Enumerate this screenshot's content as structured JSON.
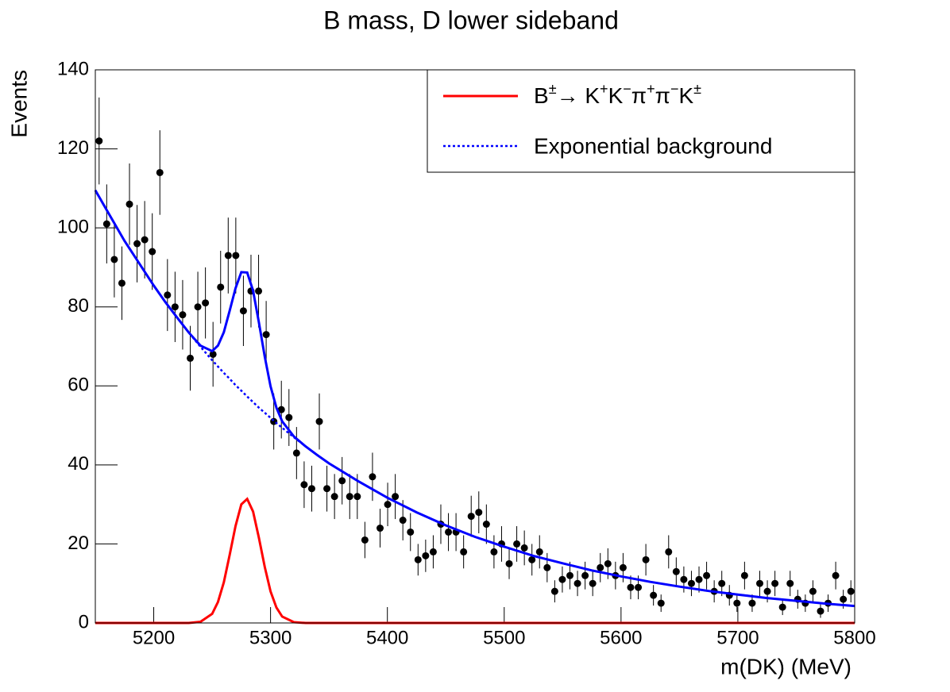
{
  "chart_data": {
    "type": "histogram",
    "title": "B mass, D lower sideband",
    "xlabel": "m(DK) (MeV)",
    "ylabel": "Events",
    "xlim": [
      5150,
      5800
    ],
    "ylim": [
      0,
      140
    ],
    "xticks": [
      5200,
      5300,
      5400,
      5500,
      5600,
      5700,
      5800
    ],
    "yticks": [
      0,
      20,
      40,
      60,
      80,
      100,
      120,
      140
    ],
    "color": "#000000",
    "bins": [
      5150,
      5156.5,
      5163,
      5169.5,
      5176,
      5182.5,
      5189,
      5195.5,
      5202,
      5208.5,
      5215,
      5221.5,
      5228,
      5234.5,
      5241,
      5247.5,
      5254,
      5260.5,
      5267,
      5273.5,
      5280,
      5286.5,
      5293,
      5299.5,
      5306,
      5312.5,
      5319,
      5325.5,
      5332,
      5338.5,
      5345,
      5351.5,
      5358,
      5364.5,
      5371,
      5377.5,
      5384,
      5390.5,
      5397,
      5403.5,
      5410,
      5416.5,
      5423,
      5429.5,
      5436,
      5442.5,
      5449,
      5455.5,
      5462,
      5468.5,
      5475,
      5481.5,
      5488,
      5494.5,
      5501,
      5507.5,
      5514,
      5520.5,
      5527,
      5533.5,
      5540,
      5546.5,
      5553,
      5559.5,
      5566,
      5572.5,
      5579,
      5585.5,
      5592,
      5598.5,
      5605,
      5611.5,
      5618,
      5624.5,
      5631,
      5637.5,
      5644,
      5650.5,
      5657,
      5663.5,
      5670,
      5676.5,
      5683,
      5689.5,
      5696,
      5702.5,
      5709,
      5715.5,
      5722,
      5728.5,
      5735,
      5741.5,
      5748,
      5754.5,
      5761,
      5767.5,
      5774,
      5780.5,
      5787,
      5793.5,
      5800
    ],
    "values": [
      122,
      101,
      92,
      86,
      106,
      96,
      97,
      94,
      114,
      83,
      80,
      78,
      67,
      80,
      81,
      68,
      85,
      93,
      93,
      79,
      84,
      84,
      73,
      51,
      54,
      52,
      43,
      35,
      34,
      51,
      34,
      32,
      36,
      32,
      32,
      21,
      37,
      24,
      30,
      32,
      26,
      23,
      16,
      17,
      18,
      25,
      23,
      23,
      18,
      27,
      28,
      25,
      18,
      20,
      15,
      20,
      19,
      16,
      18,
      14,
      8,
      11,
      12,
      10,
      12,
      10,
      14,
      15,
      12,
      14,
      9,
      9,
      16,
      7,
      5,
      18,
      13,
      11,
      10,
      11,
      12,
      8,
      10,
      7,
      5,
      12,
      5,
      10,
      8,
      10,
      4,
      10,
      6,
      5,
      8,
      3,
      5,
      12,
      6,
      8
    ],
    "errors": [
      11.0,
      10.0,
      9.6,
      9.3,
      10.3,
      9.8,
      9.8,
      9.7,
      10.7,
      9.1,
      8.9,
      8.8,
      8.2,
      8.9,
      9.0,
      8.2,
      9.2,
      9.6,
      9.6,
      8.9,
      9.2,
      9.2,
      8.5,
      7.1,
      7.3,
      7.2,
      6.6,
      5.9,
      5.8,
      7.1,
      5.8,
      5.7,
      6.0,
      5.7,
      5.7,
      4.6,
      6.1,
      4.9,
      5.5,
      5.7,
      5.1,
      4.8,
      4.0,
      4.1,
      4.2,
      5.0,
      4.8,
      4.8,
      4.2,
      5.2,
      5.3,
      5.0,
      4.2,
      4.5,
      3.9,
      4.5,
      4.4,
      4.0,
      4.2,
      3.7,
      2.8,
      3.3,
      3.5,
      3.2,
      3.5,
      3.2,
      3.7,
      3.9,
      3.5,
      3.7,
      3.0,
      3.0,
      4.0,
      2.6,
      2.2,
      4.2,
      3.6,
      3.3,
      3.2,
      3.3,
      3.5,
      2.8,
      3.2,
      2.6,
      2.2,
      3.5,
      2.2,
      3.2,
      2.8,
      3.2,
      2.0,
      3.2,
      2.4,
      2.2,
      2.8,
      1.7,
      2.2,
      3.5,
      2.4,
      2.8
    ],
    "curve_x": [
      5150,
      5175,
      5200,
      5210,
      5220,
      5230,
      5240,
      5250,
      5255,
      5260,
      5265,
      5270,
      5275,
      5280,
      5285,
      5290,
      5295,
      5300,
      5305,
      5310,
      5320,
      5330,
      5340,
      5350,
      5375,
      5400,
      5425,
      5450,
      5475,
      5500,
      5525,
      5550,
      5575,
      5600,
      5625,
      5650,
      5675,
      5700,
      5725,
      5750,
      5775,
      5800
    ],
    "series": [
      {
        "name": "B±→ K+K−π+π−K±",
        "color": "#ff0000",
        "dash": "solid",
        "values": [
          0,
          0,
          0,
          0,
          0,
          0,
          0.3,
          2.3,
          5.3,
          10.3,
          17.2,
          24.5,
          30.0,
          31.4,
          28.2,
          21.6,
          14.2,
          8.0,
          3.9,
          1.6,
          0.2,
          0,
          0,
          0,
          0,
          0,
          0,
          0,
          0,
          0,
          0,
          0,
          0,
          0,
          0,
          0,
          0,
          0,
          0,
          0,
          0,
          0
        ]
      },
      {
        "name": "Exponential background",
        "color": "#0000ff",
        "dash": "dotted",
        "values": [
          109.5,
          96.7,
          85.4,
          81.2,
          77.3,
          73.5,
          69.9,
          66.5,
          64.9,
          63.3,
          61.8,
          60.2,
          58.8,
          57.3,
          55.9,
          54.5,
          53.2,
          51.9,
          50.6,
          49.4,
          47.0,
          44.7,
          42.5,
          40.4,
          35.9,
          31.7,
          28.0,
          24.7,
          21.8,
          19.3,
          17.0,
          15.1,
          13.3,
          11.8,
          10.4,
          9.2,
          8.1,
          7.2,
          6.3,
          5.6,
          4.9,
          4.3
        ]
      },
      {
        "color": "#0000ff",
        "dash": "solid",
        "values": [
          109.5,
          96.7,
          85.4,
          81.2,
          77.3,
          73.5,
          70.2,
          68.8,
          70.2,
          73.6,
          79.0,
          84.7,
          88.8,
          88.7,
          84.1,
          76.1,
          67.4,
          59.9,
          54.5,
          51.0,
          47.2,
          44.7,
          42.5,
          40.4,
          35.9,
          31.7,
          28.0,
          24.7,
          21.8,
          19.3,
          17.0,
          15.1,
          13.3,
          11.8,
          10.4,
          9.2,
          8.1,
          7.2,
          6.3,
          5.6,
          4.9,
          4.3
        ]
      }
    ],
    "legend": "upper right"
  }
}
